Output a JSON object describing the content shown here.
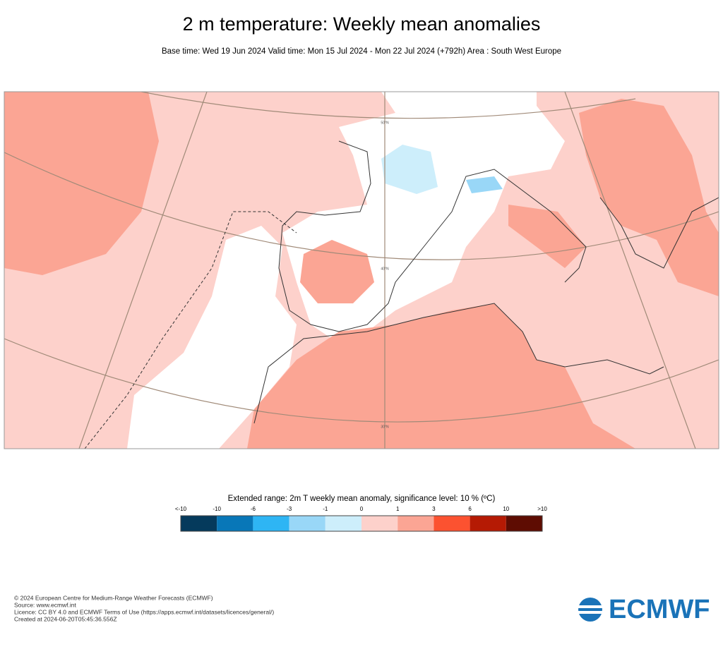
{
  "header": {
    "title": "2 m temperature: Weekly mean anomalies",
    "subtitle": "Base time: Wed 19 Jun 2024 Valid time: Mon 15 Jul 2024 - Mon 22 Jul 2024 (+792h) Area : South West Europe"
  },
  "map": {
    "lat_labels": [
      "50°N",
      "40°N",
      "30°N"
    ]
  },
  "legend": {
    "title": "Extended range: 2m T weekly mean anomaly, significance level: 10 % (ºC)",
    "labels": [
      "<-10",
      "-10",
      "-6",
      "-3",
      "-1",
      "0",
      "1",
      "3",
      "6",
      "10",
      ">10"
    ],
    "colors": [
      "#053a5c",
      "#0877b8",
      "#2eb5f4",
      "#99d7f7",
      "#cdeefb",
      "#fdd1cb",
      "#fba594",
      "#fc5230",
      "#b51a04",
      "#5e0c02"
    ]
  },
  "footer": {
    "lines": [
      "© 2024 European Centre for Medium-Range Weather Forecasts (ECMWF)",
      "Source: www.ecmwf.int",
      "Licence: CC BY 4.0 and ECMWF Terms of Use (https://apps.ecmwf.int/datasets/licences/general/)",
      "Created at 2024-06-20T05:45:36.556Z"
    ],
    "logo": "ECMWF"
  }
}
